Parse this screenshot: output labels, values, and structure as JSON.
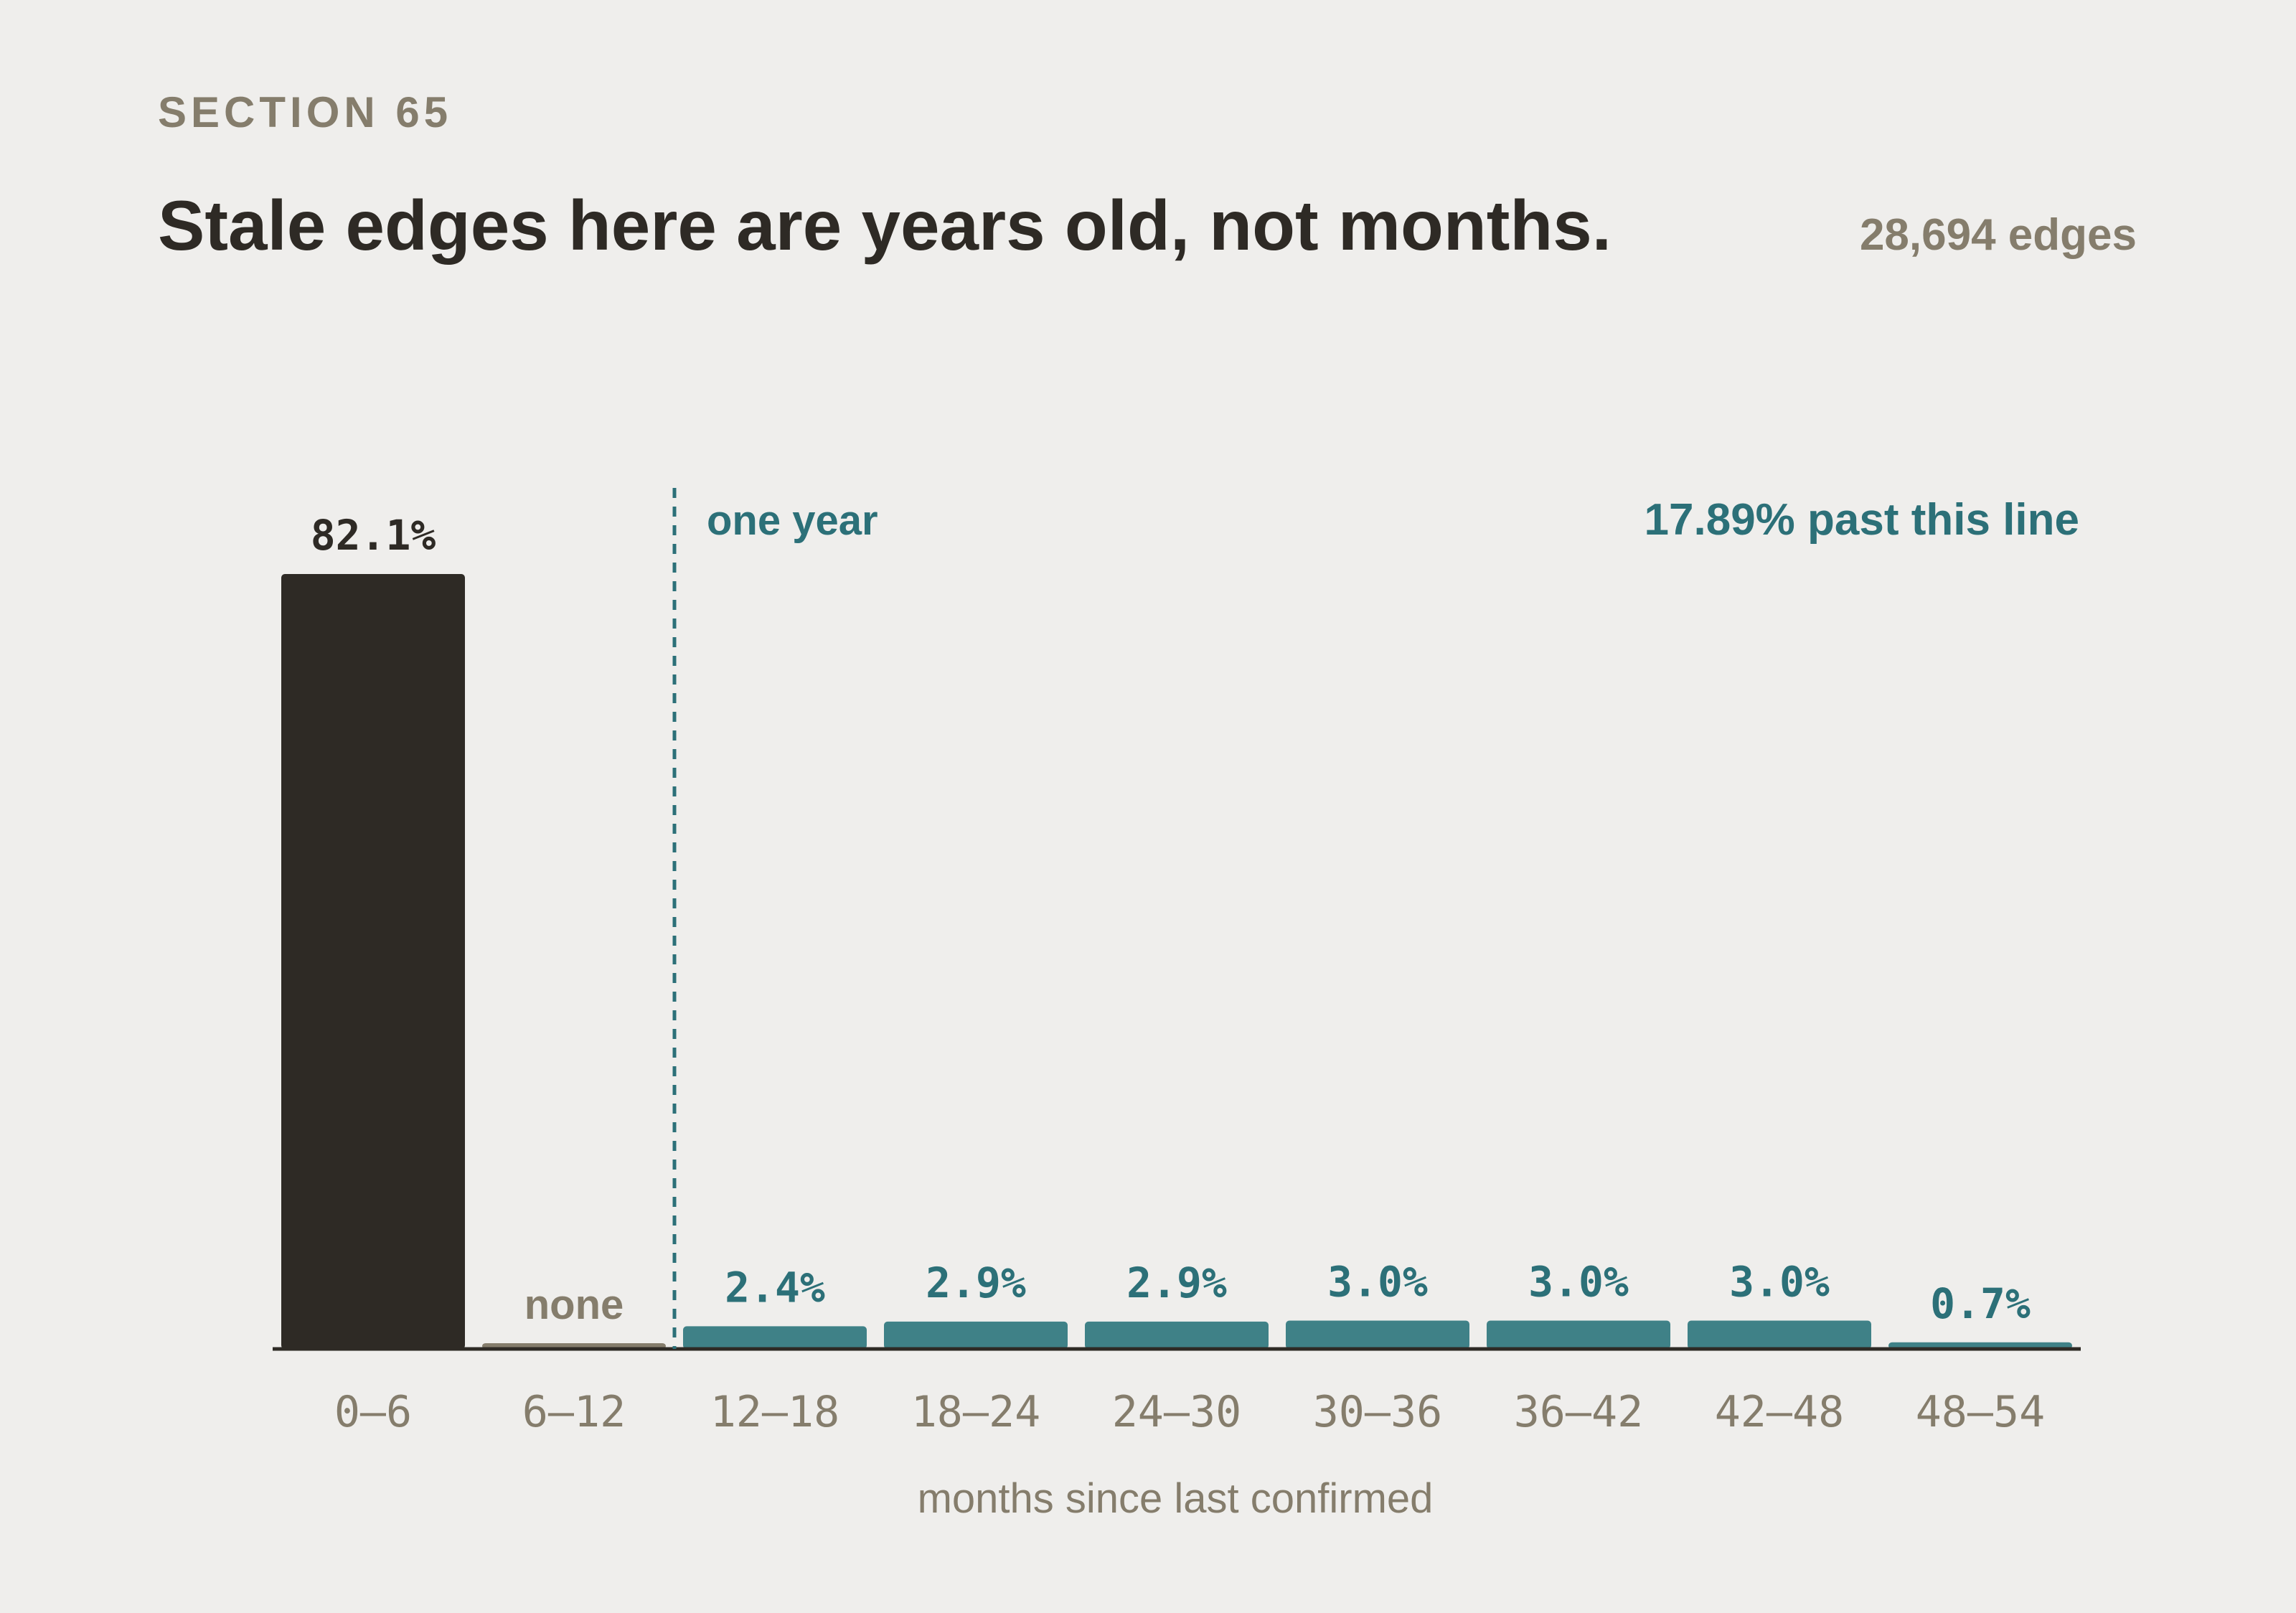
{
  "header": {
    "eyebrow": "SECTION 65",
    "title": "Stale edges here are years old, not months.",
    "edge_count": "28,694 edges"
  },
  "colors": {
    "background": "#efeeec",
    "dark_bar": "#2e2a25",
    "teal": "#2c7078",
    "teal_bar": "#3f8187",
    "muted": "#857d6c",
    "none_bar": "#857d6c"
  },
  "chart_data": {
    "type": "bar",
    "title": "Stale edges here are years old, not months.",
    "xlabel": "months since last confirmed",
    "ylabel": "",
    "categories": [
      "0–6",
      "6–12",
      "12–18",
      "18–24",
      "24–30",
      "30–36",
      "36–42",
      "42–48",
      "48–54"
    ],
    "values": [
      82.1,
      0,
      2.4,
      2.9,
      2.9,
      3.0,
      3.0,
      3.0,
      0.7
    ],
    "value_labels": [
      "82.1%",
      "none",
      "2.4%",
      "2.9%",
      "2.9%",
      "3.0%",
      "3.0%",
      "3.0%",
      "0.7%"
    ],
    "ylim": [
      0,
      82.1
    ],
    "grid": false,
    "reference_line": {
      "position": "between 6–12 and 12–18",
      "label": "one year",
      "annotation": "17.89% past this line"
    }
  }
}
